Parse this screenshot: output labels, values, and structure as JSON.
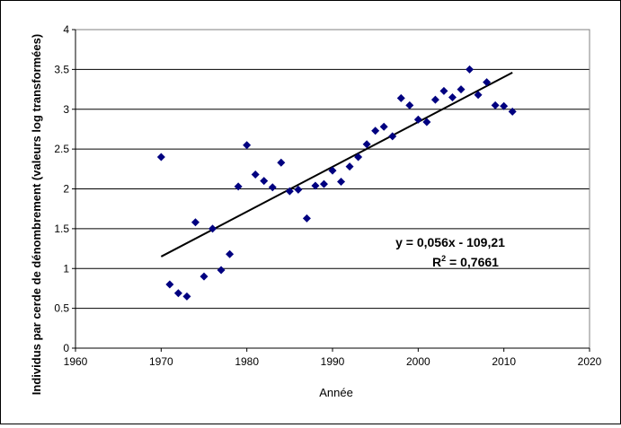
{
  "chart_data": {
    "type": "scatter",
    "xlabel": "Année",
    "ylabel": "Individus par cerde de dénombrement (valeurs log transformées)",
    "xlim": [
      1960,
      2020
    ],
    "ylim": [
      0,
      4
    ],
    "x_ticks": [
      "1960",
      "1970",
      "1980",
      "1990",
      "2000",
      "2010",
      "2020"
    ],
    "y_ticks": [
      "0",
      "0.5",
      "1",
      "1.5",
      "2",
      "2.5",
      "3",
      "3.5",
      "4"
    ],
    "grid": "horizontal",
    "marker_color": "#000080",
    "trendline_color": "#000000",
    "points": [
      [
        1970,
        2.4
      ],
      [
        1971,
        0.8
      ],
      [
        1972,
        0.69
      ],
      [
        1973,
        0.65
      ],
      [
        1974,
        1.58
      ],
      [
        1975,
        0.9
      ],
      [
        1976,
        1.5
      ],
      [
        1977,
        0.98
      ],
      [
        1978,
        1.18
      ],
      [
        1979,
        2.03
      ],
      [
        1980,
        2.55
      ],
      [
        1981,
        2.18
      ],
      [
        1982,
        2.1
      ],
      [
        1983,
        2.02
      ],
      [
        1984,
        2.33
      ],
      [
        1985,
        1.97
      ],
      [
        1986,
        1.99
      ],
      [
        1987,
        1.63
      ],
      [
        1988,
        2.04
      ],
      [
        1989,
        2.06
      ],
      [
        1990,
        2.23
      ],
      [
        1991,
        2.09
      ],
      [
        1992,
        2.28
      ],
      [
        1993,
        2.4
      ],
      [
        1994,
        2.56
      ],
      [
        1995,
        2.73
      ],
      [
        1996,
        2.78
      ],
      [
        1997,
        2.66
      ],
      [
        1998,
        3.14
      ],
      [
        1999,
        3.05
      ],
      [
        2000,
        2.87
      ],
      [
        2001,
        2.84
      ],
      [
        2002,
        3.12
      ],
      [
        2003,
        3.23
      ],
      [
        2004,
        3.15
      ],
      [
        2005,
        3.25
      ],
      [
        2006,
        3.5
      ],
      [
        2007,
        3.18
      ],
      [
        2008,
        3.34
      ],
      [
        2009,
        3.05
      ],
      [
        2010,
        3.04
      ],
      [
        2011,
        2.97
      ]
    ],
    "trendline": {
      "x": [
        1970,
        2011
      ],
      "y": [
        1.15,
        3.46
      ]
    },
    "annotation": {
      "equation": "y = 0,056x - 109,21",
      "r2_prefix": "R",
      "r2_exponent": "2",
      "r2_suffix": " = 0,7661"
    }
  }
}
